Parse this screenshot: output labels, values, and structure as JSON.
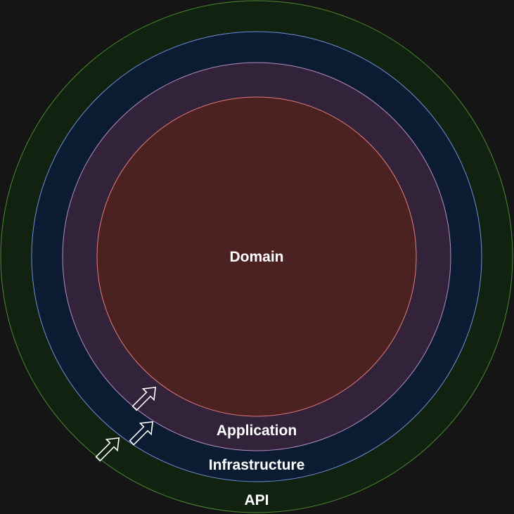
{
  "diagram": {
    "layers": [
      {
        "id": "api",
        "label": "API",
        "fill": "#112211",
        "stroke": "#4a8a2e"
      },
      {
        "id": "infrastructure",
        "label": "Infrastructure",
        "fill": "#0b1b31",
        "stroke": "#6c8fd6"
      },
      {
        "id": "application",
        "label": "Application",
        "fill": "#32233a",
        "stroke": "#b48bc4"
      },
      {
        "id": "domain",
        "label": "Domain",
        "fill": "#4c2121",
        "stroke": "#e37b7b"
      }
    ],
    "dependency_arrows": [
      {
        "from": "api",
        "to": "infrastructure",
        "icon": "outline-arrow-icon"
      },
      {
        "from": "infrastructure",
        "to": "application",
        "icon": "outline-arrow-icon"
      },
      {
        "from": "application",
        "to": "domain",
        "icon": "outline-arrow-icon"
      }
    ]
  }
}
